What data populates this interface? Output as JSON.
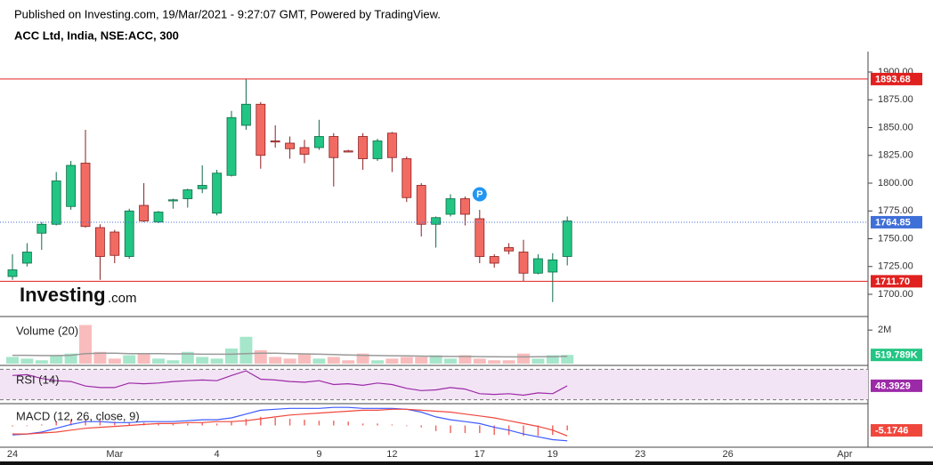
{
  "chart_data": [
    {
      "type": "candlestick",
      "source": "Published on Investing.com, 19/Mar/2021 - 9:27:07 GMT, Powered by TradingView.",
      "title": "ACC Ltd, India, NSE:ACC, 300",
      "watermark": {
        "brand": "Investing",
        "suffix": ".com"
      },
      "categories": [
        "24",
        null,
        null,
        null,
        null,
        null,
        null,
        "Mar",
        null,
        null,
        null,
        null,
        null,
        null,
        "4",
        null,
        null,
        null,
        null,
        null,
        null,
        "9",
        null,
        null,
        null,
        null,
        "12",
        null,
        null,
        null,
        null,
        null,
        "17",
        null,
        null,
        null,
        null,
        "19",
        null,
        null,
        null,
        null,
        null,
        "23",
        null,
        null,
        null,
        null,
        null,
        "26",
        null,
        null,
        null,
        null,
        null,
        null,
        null,
        "Apr",
        null
      ],
      "open": [
        1716,
        1728,
        1755,
        1763,
        1779,
        1818,
        1760,
        1756,
        1734,
        1780,
        1765,
        1784,
        1786,
        1795,
        1773,
        1807,
        1852,
        1871,
        1838,
        1836,
        1832,
        1832,
        1842,
        1829,
        1842,
        1822,
        1845,
        1822,
        1798,
        1763,
        1772,
        1786,
        1768,
        1734,
        1742,
        1738,
        1719,
        1720,
        1734,
        null,
        null,
        null,
        null,
        null,
        null,
        null,
        null,
        null,
        null,
        null,
        null,
        null,
        null,
        null,
        null,
        null,
        null,
        null,
        null
      ],
      "high": [
        1736,
        1746,
        1765,
        1810,
        1820,
        1848,
        1763,
        1758,
        1777,
        1800,
        1775,
        1786,
        1795,
        1816,
        1812,
        1865,
        1894,
        1873,
        1852,
        1842,
        1839,
        1857,
        1845,
        1830,
        1845,
        1840,
        1846,
        1824,
        1800,
        1770,
        1790,
        1788,
        1776,
        1736,
        1746,
        1749,
        1736,
        1737,
        1770,
        null,
        null,
        null,
        null,
        null,
        null,
        null,
        null,
        null,
        null,
        null,
        null,
        null,
        null,
        null,
        null,
        null,
        null,
        null,
        null
      ],
      "low": [
        1713,
        1725,
        1740,
        1762,
        1776,
        1760,
        1713,
        1728,
        1732,
        1765,
        1764,
        1777,
        1778,
        1791,
        1771,
        1806,
        1848,
        1813,
        1832,
        1822,
        1818,
        1830,
        1797,
        1828,
        1812,
        1820,
        1810,
        1783,
        1752,
        1742,
        1770,
        1762,
        1728,
        1724,
        1736,
        1712,
        1718,
        1693,
        1726,
        null,
        null,
        null,
        null,
        null,
        null,
        null,
        null,
        null,
        null,
        null,
        null,
        null,
        null,
        null,
        null,
        null,
        null,
        null,
        null
      ],
      "close": [
        1722,
        1738,
        1763,
        1802,
        1816,
        1761,
        1734,
        1735,
        1775,
        1766,
        1774,
        1785,
        1794,
        1798,
        1809,
        1859,
        1871,
        1825,
        1837,
        1831,
        1826,
        1842,
        1823,
        1828,
        1822,
        1838,
        1823,
        1787,
        1763,
        1769,
        1786,
        1772,
        1734,
        1728,
        1739,
        1719,
        1732,
        1731,
        1766,
        null,
        null,
        null,
        null,
        null,
        null,
        null,
        null,
        null,
        null,
        null,
        null,
        null,
        null,
        null,
        null,
        null,
        null,
        null,
        null
      ],
      "up_color": "#22c583",
      "down_color": "#f26b63",
      "ylim": [
        1680.8,
        1918.4
      ],
      "yticks": [
        {
          "value": 1700,
          "label": "1700.00"
        },
        {
          "value": 1725,
          "label": "1725.00"
        },
        {
          "value": 1750,
          "label": "1750.00"
        },
        {
          "value": 1775,
          "label": "1775.00"
        },
        {
          "value": 1800,
          "label": "1800.00"
        },
        {
          "value": 1825,
          "label": "1825.00"
        },
        {
          "value": 1850,
          "label": "1850.00"
        },
        {
          "value": 1875,
          "label": "1875.00"
        },
        {
          "value": 1900,
          "label": "1900.00"
        }
      ],
      "levels": [
        {
          "value": 1893.68,
          "color": "#e0211f"
        },
        {
          "value": 1764.85,
          "color": "#3f6fd8",
          "style": "dotted"
        },
        {
          "value": 1711.7,
          "label": "1711.70",
          "color": "#e0211f"
        }
      ],
      "annotations": [
        {
          "text": "P",
          "at": 32,
          "value": 1790,
          "color": "#2196f3"
        }
      ]
    },
    {
      "type": "bar",
      "title": "Volume (20)",
      "values": [
        400000,
        300000,
        200000,
        500000,
        600000,
        2300000,
        700000,
        300000,
        500000,
        600000,
        300000,
        200000,
        700000,
        400000,
        300000,
        900000,
        1600000,
        800000,
        400000,
        300000,
        600000,
        300000,
        400000,
        200000,
        600000,
        200000,
        300000,
        400000,
        400000,
        500000,
        300000,
        500000,
        300000,
        200000,
        200000,
        600000,
        300000,
        500000,
        519789,
        null,
        null,
        null,
        null,
        null,
        null,
        null,
        null,
        null,
        null,
        null,
        null,
        null,
        null,
        null,
        null,
        null,
        null,
        null,
        null
      ],
      "value_labels": [
        null,
        null,
        null,
        null,
        null,
        null,
        null,
        null,
        null,
        null,
        null,
        null,
        null,
        null,
        null,
        null,
        null,
        null,
        null,
        null,
        null,
        null,
        null,
        null,
        null,
        null,
        null,
        null,
        null,
        null,
        null,
        null,
        null,
        null,
        null,
        null,
        null,
        null,
        "519.789K",
        null,
        null,
        null,
        null,
        null,
        null,
        null,
        null,
        null,
        null,
        null,
        null,
        null,
        null,
        null,
        null,
        null,
        null,
        null,
        null
      ],
      "ma": [
        500000,
        500000,
        480000,
        480000,
        500000,
        600000,
        620000,
        620000,
        600000,
        600000,
        600000,
        580000,
        580000,
        560000,
        560000,
        560000,
        600000,
        620000,
        620000,
        600000,
        580000,
        560000,
        540000,
        520000,
        500000,
        480000,
        470000,
        460000,
        450000,
        440000,
        430000,
        430000,
        420000,
        410000,
        400000,
        400000,
        410000,
        420000,
        440000,
        null,
        null,
        null,
        null,
        null,
        null,
        null,
        null,
        null,
        null,
        null,
        null,
        null,
        null,
        null,
        null,
        null,
        null,
        null,
        null
      ],
      "up_color": "#a6e6cb",
      "down_color": "#f9bcbc",
      "ma_color": "#999999",
      "label_color": "#22c583",
      "ylim": [
        0,
        2700000
      ],
      "yticks": [
        {
          "value": 2000000,
          "label": "2M"
        }
      ]
    },
    {
      "type": "line",
      "title": "RSI (14)",
      "values": [
        62,
        63,
        58,
        55,
        54,
        48,
        46,
        46,
        52,
        51,
        52,
        54,
        55,
        56,
        55,
        62,
        68,
        57,
        56,
        54,
        53,
        55,
        50,
        51,
        49,
        52,
        50,
        45,
        42,
        43,
        46,
        44,
        38,
        37,
        38,
        36,
        39,
        38,
        48.3929,
        null,
        null,
        null,
        null,
        null,
        null,
        null,
        null,
        null,
        null,
        null,
        null,
        null,
        null,
        null,
        null,
        null,
        null,
        null,
        null
      ],
      "color": "#9c2aa8",
      "band_color": "#f3e4f5",
      "levels": [
        70,
        30
      ],
      "ylim": [
        26,
        74
      ]
    },
    {
      "type": "macd",
      "title": "MACD (12, 26, close, 9)",
      "macd": [
        -10,
        -9,
        -7,
        -3,
        1,
        4,
        4,
        3,
        3,
        4,
        4,
        4,
        5,
        6,
        6,
        8,
        12,
        16,
        17,
        18,
        18,
        18,
        19,
        19,
        18,
        18,
        18,
        17,
        14,
        9,
        6,
        4,
        2,
        -2,
        -5,
        -9,
        -12,
        -15,
        -16.2,
        null,
        null,
        null,
        null,
        null,
        null,
        null,
        null,
        null,
        null,
        null,
        null,
        null,
        null,
        null,
        null,
        null,
        null,
        null,
        null
      ],
      "signal": [
        -9,
        -9,
        -8,
        -7,
        -5,
        -3,
        -2,
        -1,
        0,
        1,
        2,
        2,
        3,
        3,
        4,
        4,
        5,
        7,
        9,
        11,
        12,
        13,
        14,
        15,
        16,
        16,
        17,
        17,
        16,
        15,
        14,
        12,
        10,
        8,
        5,
        2,
        -1,
        -5,
        -11,
        null,
        null,
        null,
        null,
        null,
        null,
        null,
        null,
        null,
        null,
        null,
        null,
        null,
        null,
        null,
        null,
        null,
        null,
        null,
        null
      ],
      "histogram": [
        -1,
        0,
        1,
        4,
        6,
        7,
        6,
        4,
        3,
        3,
        2,
        2,
        2,
        3,
        2,
        4,
        7,
        9,
        8,
        7,
        6,
        5,
        5,
        4,
        2,
        2,
        1,
        0,
        -2,
        -6,
        -8,
        -8,
        -8,
        -10,
        -10,
        -11,
        -11,
        -10,
        -5.1746,
        null,
        null,
        null,
        null,
        null,
        null,
        null,
        null,
        null,
        null,
        null,
        null,
        null,
        null,
        null,
        null,
        null,
        null,
        null,
        null
      ],
      "macd_color": "#3d5afe",
      "signal_color": "#f0473d",
      "histogram_color": "#f26b63",
      "ylim": [
        -22,
        22
      ]
    }
  ]
}
